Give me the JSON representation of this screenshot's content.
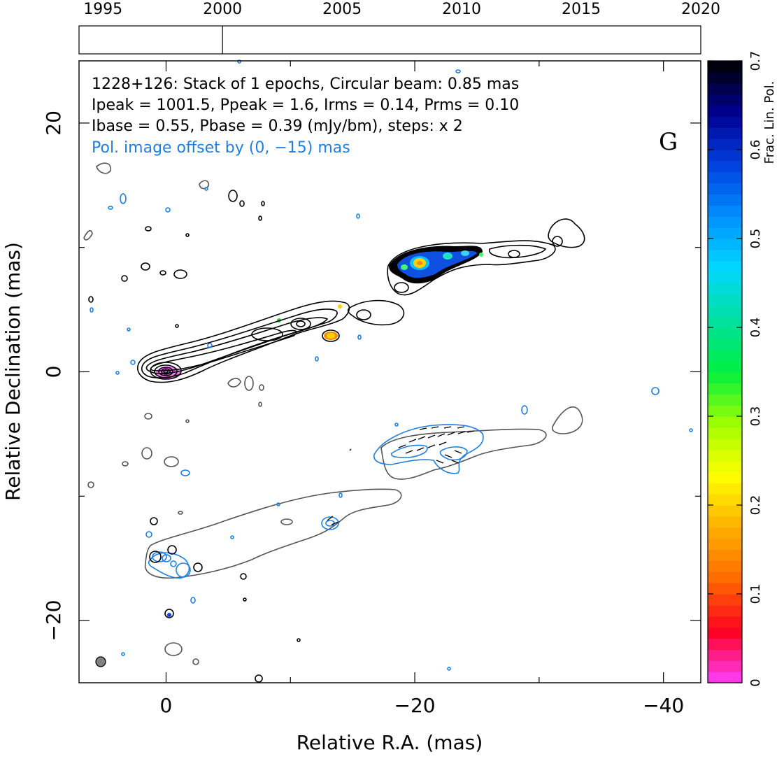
{
  "chart_data": {
    "type": "image",
    "source_name": "1228+126",
    "legend_lines": [
      "1228+126: Stack of 1 epochs, Circular beam: 0.85 mas",
      "Ipeak = 1001.5, Ppeak = 1.6, Irms = 0.14, Prms = 0.10",
      "Ibase = 0.55, Pbase = 0.39 (mJy/bm), steps: x 2"
    ],
    "pol_offset_note": "Pol. image offset by (0, −15) mas",
    "panel_letter": "G",
    "xlabel": "Relative R.A. (mas)",
    "ylabel": "Relative Declination (mas)",
    "xlim": [
      7,
      -43
    ],
    "ylim": [
      -25,
      25
    ],
    "x_ticks": [
      0,
      -20,
      -40
    ],
    "x_tick_labels": [
      "0",
      "−20",
      "−40"
    ],
    "y_ticks": [
      -20,
      0,
      20
    ],
    "y_tick_labels": [
      "−20",
      "0",
      "20"
    ],
    "timeline": {
      "years": [
        1995,
        2000,
        2005,
        2010,
        2015,
        2020
      ],
      "year_range": [
        1994,
        2020
      ],
      "epoch_years": [
        2000.0
      ]
    },
    "colorbar": {
      "label": "Frac. Lin. Pol.",
      "range": [
        0,
        0.7
      ],
      "ticks": [
        0,
        0.1,
        0.2,
        0.3,
        0.4,
        0.5,
        0.6,
        0.7
      ],
      "tick_labels": [
        "0",
        "0.1",
        "0.2",
        "0.3",
        "0.4",
        "0.5",
        "0.6",
        "0.7"
      ],
      "colormap": [
        "#ff40ff",
        "#ff0020",
        "#ff6a00",
        "#ffb000",
        "#ffff00",
        "#a0ff00",
        "#00f040",
        "#00e0a0",
        "#00d8ff",
        "#0090ff",
        "#0040e0",
        "#000090",
        "#000000"
      ]
    },
    "beam_mas": 0.85,
    "colors": {
      "total_intensity_contours": "#000000",
      "lowest_contour": "#555555",
      "pol_contours": "#1f7fe0",
      "evpa_ticks": "#000000"
    }
  }
}
